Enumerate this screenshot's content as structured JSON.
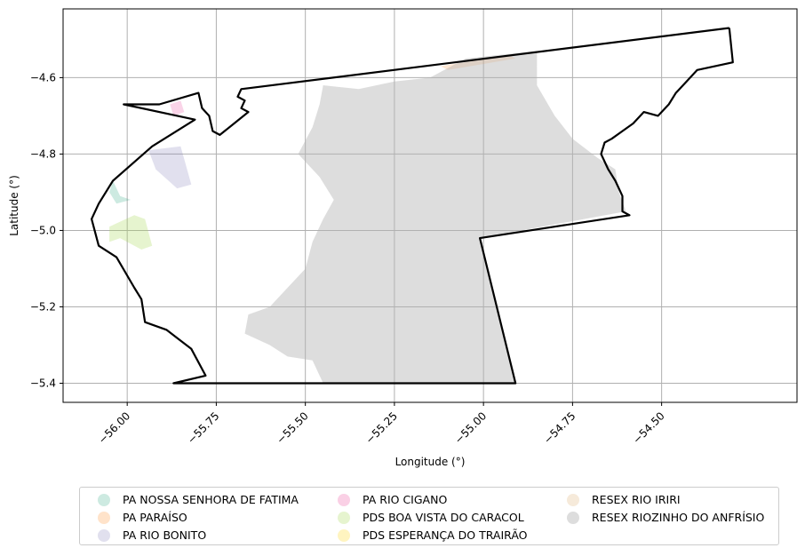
{
  "chart_data": {
    "type": "map",
    "xlabel": "Longitude (°)",
    "ylabel": "Latitude (°)",
    "xlim": [
      -56.18,
      -54.12
    ],
    "ylim": [
      -5.45,
      -4.42
    ],
    "xticks": [
      -56.0,
      -55.75,
      -55.5,
      -55.25,
      -55.0,
      -54.75,
      -54.5
    ],
    "xtick_labels": [
      "−56.00",
      "−55.75",
      "−55.50",
      "−55.25",
      "−55.00",
      "−54.75",
      "−54.50"
    ],
    "yticks": [
      -4.6,
      -4.8,
      -5.0,
      -5.2,
      -5.4
    ],
    "ytick_labels": [
      "−4.6",
      "−4.8",
      "−5.0",
      "−5.2",
      "−5.4"
    ],
    "grid": true,
    "legend_placement": "below",
    "boundary": [
      [
        -54.31,
        -4.47
      ],
      [
        -55.68,
        -4.63
      ],
      [
        -55.69,
        -4.65
      ],
      [
        -55.67,
        -4.66
      ],
      [
        -55.68,
        -4.68
      ],
      [
        -55.66,
        -4.69
      ],
      [
        -55.7,
        -4.72
      ],
      [
        -55.74,
        -4.75
      ],
      [
        -55.76,
        -4.74
      ],
      [
        -55.77,
        -4.7
      ],
      [
        -55.79,
        -4.68
      ],
      [
        -55.8,
        -4.64
      ],
      [
        -55.91,
        -4.67
      ],
      [
        -56.01,
        -4.67
      ],
      [
        -55.81,
        -4.71
      ],
      [
        -55.93,
        -4.78
      ],
      [
        -56.04,
        -4.87
      ],
      [
        -56.08,
        -4.93
      ],
      [
        -56.1,
        -4.97
      ],
      [
        -56.08,
        -5.04
      ],
      [
        -56.03,
        -5.07
      ],
      [
        -55.98,
        -5.15
      ],
      [
        -55.96,
        -5.18
      ],
      [
        -55.95,
        -5.24
      ],
      [
        -55.89,
        -5.26
      ],
      [
        -55.82,
        -5.31
      ],
      [
        -55.78,
        -5.38
      ],
      [
        -55.87,
        -5.4
      ],
      [
        -54.91,
        -5.4
      ],
      [
        -55.01,
        -5.02
      ],
      [
        -54.59,
        -4.96
      ],
      [
        -54.61,
        -4.95
      ],
      [
        -54.61,
        -4.91
      ],
      [
        -54.63,
        -4.87
      ],
      [
        -54.65,
        -4.84
      ],
      [
        -54.67,
        -4.8
      ],
      [
        -54.66,
        -4.77
      ],
      [
        -54.64,
        -4.76
      ],
      [
        -54.61,
        -4.74
      ],
      [
        -54.58,
        -4.72
      ],
      [
        -54.55,
        -4.69
      ],
      [
        -54.51,
        -4.7
      ],
      [
        -54.48,
        -4.67
      ],
      [
        -54.46,
        -4.64
      ],
      [
        -54.43,
        -4.61
      ],
      [
        -54.4,
        -4.58
      ],
      [
        -54.3,
        -4.56
      ],
      [
        -54.31,
        -4.47
      ]
    ],
    "areas": [
      {
        "name": "PA NOSSA SENHORA DE FATIMA",
        "color": "#1b9e77",
        "opacity": 0.22,
        "polygon": [
          [
            -56.04,
            -4.87
          ],
          [
            -56.02,
            -4.91
          ],
          [
            -55.99,
            -4.92
          ],
          [
            -56.03,
            -4.93
          ],
          [
            -56.05,
            -4.9
          ]
        ]
      },
      {
        "name": "PA PARAÍSO",
        "color": "#ff7f0e",
        "opacity": 0.18,
        "polygon": [
          [
            -55.12,
            -4.57
          ],
          [
            -54.93,
            -4.54
          ],
          [
            -54.91,
            -4.55
          ],
          [
            -55.1,
            -4.58
          ]
        ]
      },
      {
        "name": "PA RIO BONITO",
        "color": "#7570b3",
        "opacity": 0.22,
        "polygon": [
          [
            -55.94,
            -4.79
          ],
          [
            -55.85,
            -4.78
          ],
          [
            -55.82,
            -4.88
          ],
          [
            -55.86,
            -4.89
          ],
          [
            -55.92,
            -4.84
          ]
        ]
      },
      {
        "name": "PA RIO CIGANO",
        "color": "#e7298a",
        "opacity": 0.2,
        "polygon": [
          [
            -55.88,
            -4.67
          ],
          [
            -55.85,
            -4.66
          ],
          [
            -55.84,
            -4.69
          ],
          [
            -55.87,
            -4.7
          ]
        ]
      },
      {
        "name": "PDS BOA VISTA DO CARACOL",
        "color": "#a6d854",
        "opacity": 0.28,
        "polygon": [
          [
            -56.05,
            -4.99
          ],
          [
            -55.98,
            -4.96
          ],
          [
            -55.95,
            -4.97
          ],
          [
            -55.93,
            -5.04
          ],
          [
            -55.96,
            -5.05
          ],
          [
            -56.02,
            -5.02
          ],
          [
            -56.05,
            -5.03
          ]
        ]
      },
      {
        "name": "PDS ESPERANÇA DO TRAIRÃO",
        "color": "#ffd92f",
        "opacity": 0.3,
        "polygon": []
      },
      {
        "name": "RESEX RIO IRIRI",
        "color": "#e5c494",
        "opacity": 0.35,
        "polygon": []
      },
      {
        "name": "RESEX RIOZINHO DO ANFRÍSIO",
        "color": "#b3b3b3",
        "opacity": 0.45,
        "polygon": [
          [
            -55.45,
            -4.62
          ],
          [
            -55.35,
            -4.63
          ],
          [
            -55.25,
            -4.61
          ],
          [
            -55.15,
            -4.6
          ],
          [
            -55.05,
            -4.55
          ],
          [
            -54.85,
            -4.53
          ],
          [
            -54.85,
            -4.62
          ],
          [
            -54.8,
            -4.7
          ],
          [
            -54.75,
            -4.76
          ],
          [
            -54.68,
            -4.81
          ],
          [
            -54.63,
            -4.84
          ],
          [
            -54.62,
            -4.9
          ],
          [
            -54.6,
            -4.95
          ],
          [
            -55.01,
            -5.02
          ],
          [
            -54.91,
            -5.4
          ],
          [
            -55.45,
            -5.4
          ],
          [
            -55.48,
            -5.34
          ],
          [
            -55.55,
            -5.33
          ],
          [
            -55.6,
            -5.3
          ],
          [
            -55.67,
            -5.27
          ],
          [
            -55.66,
            -5.22
          ],
          [
            -55.6,
            -5.2
          ],
          [
            -55.55,
            -5.15
          ],
          [
            -55.5,
            -5.1
          ],
          [
            -55.48,
            -5.03
          ],
          [
            -55.45,
            -4.97
          ],
          [
            -55.42,
            -4.92
          ],
          [
            -55.46,
            -4.86
          ],
          [
            -55.52,
            -4.8
          ],
          [
            -55.48,
            -4.73
          ],
          [
            -55.46,
            -4.67
          ]
        ]
      }
    ]
  },
  "legend": {
    "items": [
      {
        "label": "PA NOSSA SENHORA DE FATIMA",
        "color": "#1b9e77",
        "opacity": 0.22
      },
      {
        "label": "PA PARAÍSO",
        "color": "#ff7f0e",
        "opacity": 0.22
      },
      {
        "label": "PA RIO BONITO",
        "color": "#7570b3",
        "opacity": 0.22
      },
      {
        "label": "PA RIO CIGANO",
        "color": "#e7298a",
        "opacity": 0.22
      },
      {
        "label": "PDS BOA VISTA DO CARACOL",
        "color": "#a6d854",
        "opacity": 0.28
      },
      {
        "label": "PDS ESPERANÇA DO TRAIRÃO",
        "color": "#ffd92f",
        "opacity": 0.3
      },
      {
        "label": "RESEX RIO IRIRI",
        "color": "#e5c494",
        "opacity": 0.35
      },
      {
        "label": "RESEX RIOZINHO DO ANFRÍSIO",
        "color": "#b3b3b3",
        "opacity": 0.45
      }
    ]
  }
}
